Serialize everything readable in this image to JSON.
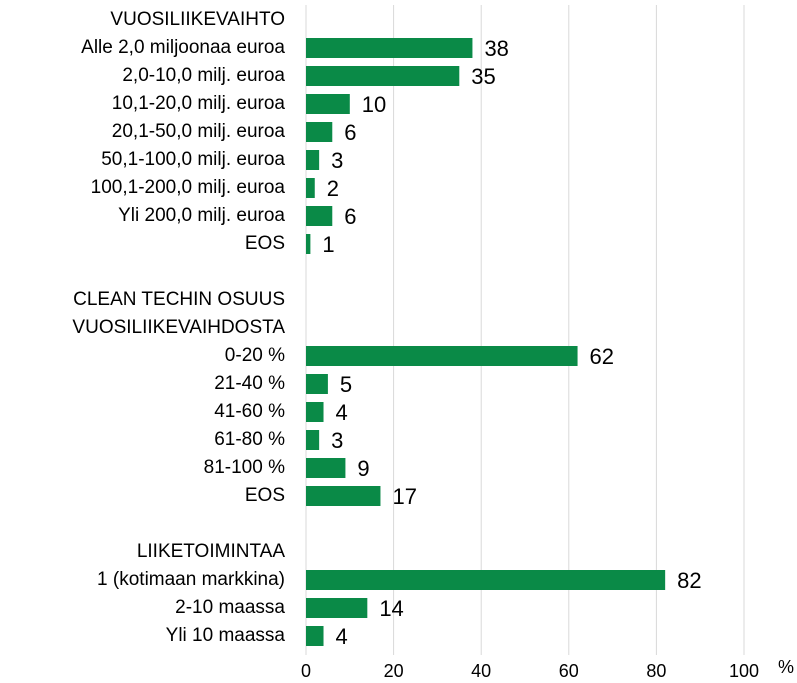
{
  "chart_data": {
    "type": "bar",
    "orientation": "horizontal",
    "color": "#0a8a47",
    "grid": true,
    "xlim": [
      0,
      100
    ],
    "xticks": [
      0,
      20,
      40,
      60,
      80,
      100
    ],
    "x_label": "%",
    "groups": [
      {
        "title": [
          "VUOSILIIKEVAIHTO"
        ],
        "categories": [
          "Alle 2,0 miljoonaa euroa",
          "2,0-10,0 milj. euroa",
          "10,1-20,0 milj. euroa",
          "20,1-50,0 milj. euroa",
          "50,1-100,0 milj. euroa",
          "100,1-200,0 milj. euroa",
          "Yli 200,0 milj. euroa",
          "EOS"
        ],
        "values": [
          38,
          35,
          10,
          6,
          3,
          2,
          6,
          1
        ]
      },
      {
        "title": [
          "CLEAN TECHIN OSUUS",
          "VUOSILIIKEVAIHDOSTA"
        ],
        "categories": [
          "0-20 %",
          "21-40 %",
          "41-60 %",
          "61-80 %",
          "81-100 %",
          "EOS"
        ],
        "values": [
          62,
          5,
          4,
          3,
          9,
          17
        ]
      },
      {
        "title": [
          "LIIKETOIMINTAA"
        ],
        "categories": [
          "1 (kotimaan markkina)",
          "2-10 maassa",
          "Yli 10 maassa"
        ],
        "values": [
          82,
          14,
          4
        ]
      }
    ]
  }
}
